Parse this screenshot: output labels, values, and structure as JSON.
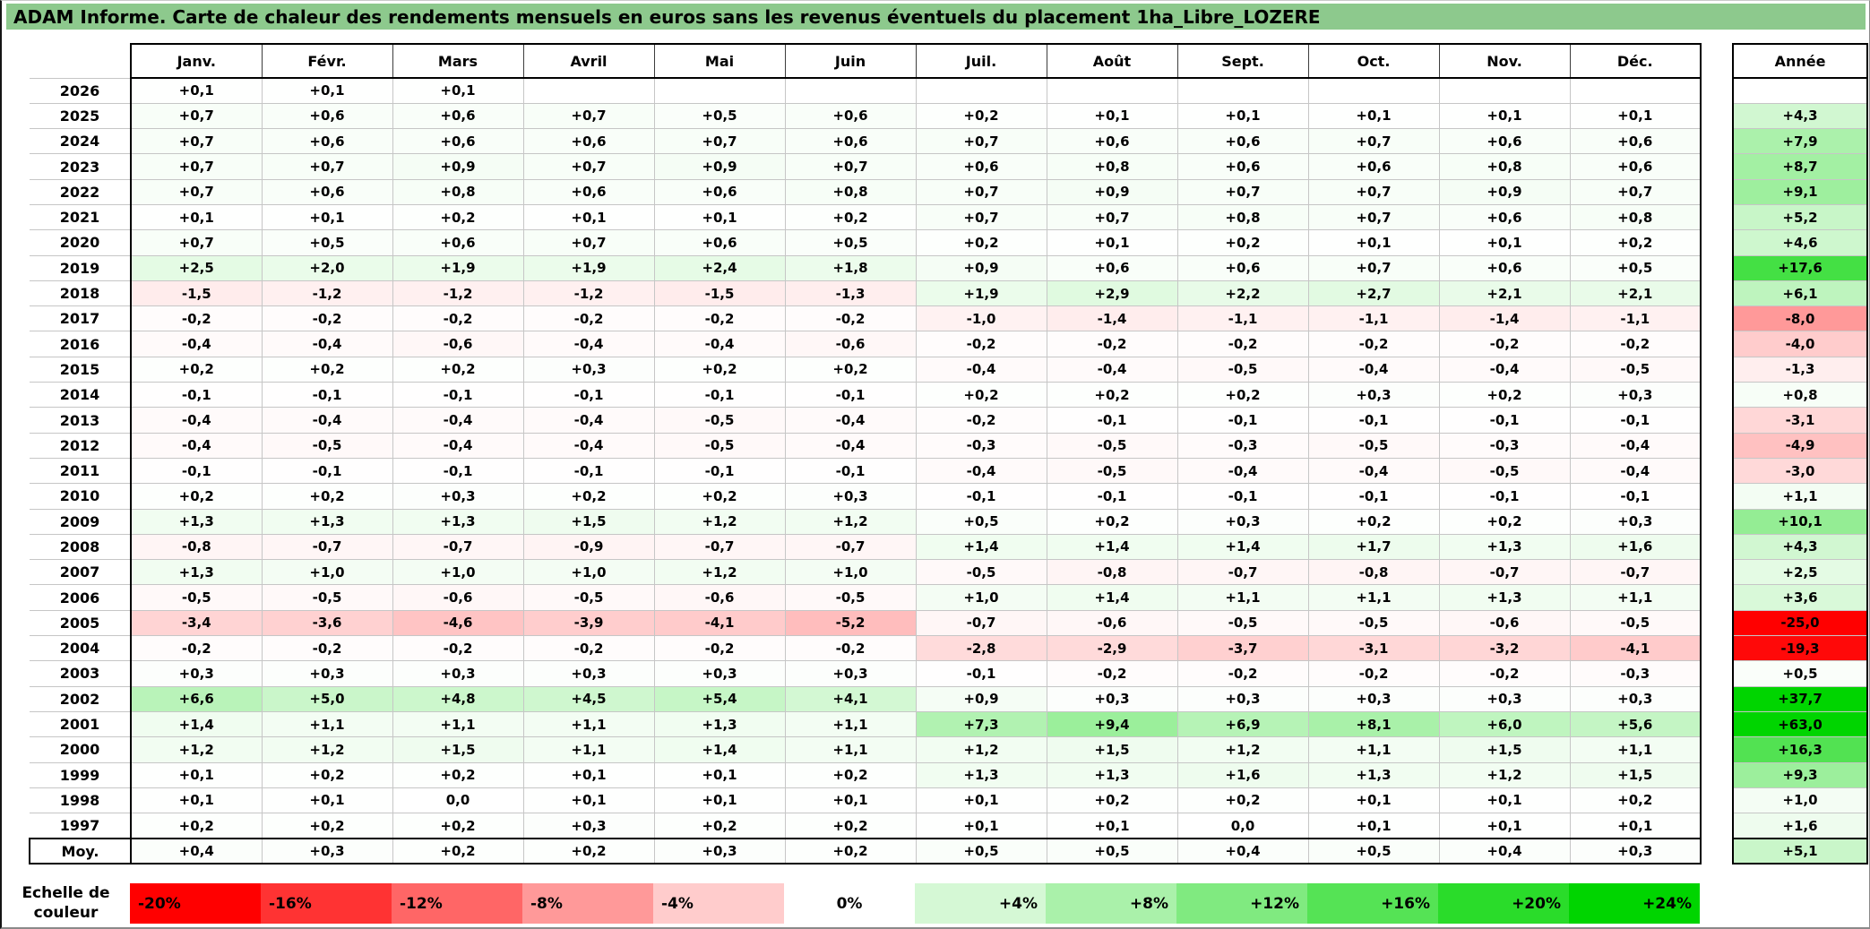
{
  "title": "ADAM Informe. Carte de chaleur des rendements mensuels en euros sans les revenus éventuels du placement 1ha_Libre_LOZERE",
  "colors": {
    "title_bar": "#8DC98D",
    "negative_max": "#FF0000",
    "zero": "#FFFFFF",
    "positive_max": "#00D500",
    "gridline": "#C6C6C6"
  },
  "table": {
    "annual_header": "Année",
    "average_label": "Moy."
  },
  "scale": {
    "label": "Echelle de couleur",
    "ticks": [
      -20,
      -16,
      -12,
      -8,
      -4,
      0,
      4,
      8,
      12,
      16,
      20,
      24
    ]
  },
  "chart_data": {
    "type": "heatmap",
    "title": "ADAM Informe. Carte de chaleur des rendements mensuels en euros sans les revenus éventuels du placement 1ha_Libre_LOZERE",
    "columns": [
      "Janv.",
      "Févr.",
      "Mars",
      "Avril",
      "Mai",
      "Juin",
      "Juil.",
      "Août",
      "Sept.",
      "Oct.",
      "Nov.",
      "Déc."
    ],
    "annual_column": "Année",
    "value_format": "signed, one decimal, comma as decimal separator, percent",
    "rows": [
      {
        "year": "2026",
        "monthly": [
          0.1,
          0.1,
          0.1,
          null,
          null,
          null,
          null,
          null,
          null,
          null,
          null,
          null
        ],
        "annual": null
      },
      {
        "year": "2025",
        "monthly": [
          0.7,
          0.6,
          0.6,
          0.7,
          0.5,
          0.6,
          0.2,
          0.1,
          0.1,
          0.1,
          0.1,
          0.1
        ],
        "annual": 4.3
      },
      {
        "year": "2024",
        "monthly": [
          0.7,
          0.6,
          0.6,
          0.6,
          0.7,
          0.6,
          0.7,
          0.6,
          0.6,
          0.7,
          0.6,
          0.6
        ],
        "annual": 7.9
      },
      {
        "year": "2023",
        "monthly": [
          0.7,
          0.7,
          0.9,
          0.7,
          0.9,
          0.7,
          0.6,
          0.8,
          0.6,
          0.6,
          0.8,
          0.6
        ],
        "annual": 8.7
      },
      {
        "year": "2022",
        "monthly": [
          0.7,
          0.6,
          0.8,
          0.6,
          0.6,
          0.8,
          0.7,
          0.9,
          0.7,
          0.7,
          0.9,
          0.7
        ],
        "annual": 9.1
      },
      {
        "year": "2021",
        "monthly": [
          0.1,
          0.1,
          0.2,
          0.1,
          0.1,
          0.2,
          0.7,
          0.7,
          0.8,
          0.7,
          0.6,
          0.8
        ],
        "annual": 5.2
      },
      {
        "year": "2020",
        "monthly": [
          0.7,
          0.5,
          0.6,
          0.7,
          0.6,
          0.5,
          0.2,
          0.1,
          0.2,
          0.1,
          0.1,
          0.2
        ],
        "annual": 4.6
      },
      {
        "year": "2019",
        "monthly": [
          2.5,
          2.0,
          1.9,
          1.9,
          2.4,
          1.8,
          0.9,
          0.6,
          0.6,
          0.7,
          0.6,
          0.5
        ],
        "annual": 17.6
      },
      {
        "year": "2018",
        "monthly": [
          -1.5,
          -1.2,
          -1.2,
          -1.2,
          -1.5,
          -1.3,
          1.9,
          2.9,
          2.2,
          2.7,
          2.1,
          2.1
        ],
        "annual": 6.1
      },
      {
        "year": "2017",
        "monthly": [
          -0.2,
          -0.2,
          -0.2,
          -0.2,
          -0.2,
          -0.2,
          -1.0,
          -1.4,
          -1.1,
          -1.1,
          -1.4,
          -1.1
        ],
        "annual": -8.0
      },
      {
        "year": "2016",
        "monthly": [
          -0.4,
          -0.4,
          -0.6,
          -0.4,
          -0.4,
          -0.6,
          -0.2,
          -0.2,
          -0.2,
          -0.2,
          -0.2,
          -0.2
        ],
        "annual": -4.0
      },
      {
        "year": "2015",
        "monthly": [
          0.2,
          0.2,
          0.2,
          0.3,
          0.2,
          0.2,
          -0.4,
          -0.4,
          -0.5,
          -0.4,
          -0.4,
          -0.5
        ],
        "annual": -1.3
      },
      {
        "year": "2014",
        "monthly": [
          -0.1,
          -0.1,
          -0.1,
          -0.1,
          -0.1,
          -0.1,
          0.2,
          0.2,
          0.2,
          0.3,
          0.2,
          0.3
        ],
        "annual": 0.8
      },
      {
        "year": "2013",
        "monthly": [
          -0.4,
          -0.4,
          -0.4,
          -0.4,
          -0.5,
          -0.4,
          -0.2,
          -0.1,
          -0.1,
          -0.1,
          -0.1,
          -0.1
        ],
        "annual": -3.1
      },
      {
        "year": "2012",
        "monthly": [
          -0.4,
          -0.5,
          -0.4,
          -0.4,
          -0.5,
          -0.4,
          -0.3,
          -0.5,
          -0.3,
          -0.5,
          -0.3,
          -0.4
        ],
        "annual": -4.9
      },
      {
        "year": "2011",
        "monthly": [
          -0.1,
          -0.1,
          -0.1,
          -0.1,
          -0.1,
          -0.1,
          -0.4,
          -0.5,
          -0.4,
          -0.4,
          -0.5,
          -0.4
        ],
        "annual": -3.0
      },
      {
        "year": "2010",
        "monthly": [
          0.2,
          0.2,
          0.3,
          0.2,
          0.2,
          0.3,
          -0.1,
          -0.1,
          -0.1,
          -0.1,
          -0.1,
          -0.1
        ],
        "annual": 1.1
      },
      {
        "year": "2009",
        "monthly": [
          1.3,
          1.3,
          1.3,
          1.5,
          1.2,
          1.2,
          0.5,
          0.2,
          0.3,
          0.2,
          0.2,
          0.3
        ],
        "annual": 10.1
      },
      {
        "year": "2008",
        "monthly": [
          -0.8,
          -0.7,
          -0.7,
          -0.9,
          -0.7,
          -0.7,
          1.4,
          1.4,
          1.4,
          1.7,
          1.3,
          1.6
        ],
        "annual": 4.3
      },
      {
        "year": "2007",
        "monthly": [
          1.3,
          1.0,
          1.0,
          1.0,
          1.2,
          1.0,
          -0.5,
          -0.8,
          -0.7,
          -0.8,
          -0.7,
          -0.7
        ],
        "annual": 2.5
      },
      {
        "year": "2006",
        "monthly": [
          -0.5,
          -0.5,
          -0.6,
          -0.5,
          -0.6,
          -0.5,
          1.0,
          1.4,
          1.1,
          1.1,
          1.3,
          1.1
        ],
        "annual": 3.6
      },
      {
        "year": "2005",
        "monthly": [
          -3.4,
          -3.6,
          -4.6,
          -3.9,
          -4.1,
          -5.2,
          -0.7,
          -0.6,
          -0.5,
          -0.5,
          -0.6,
          -0.5
        ],
        "annual": -25.0
      },
      {
        "year": "2004",
        "monthly": [
          -0.2,
          -0.2,
          -0.2,
          -0.2,
          -0.2,
          -0.2,
          -2.8,
          -2.9,
          -3.7,
          -3.1,
          -3.2,
          -4.1
        ],
        "annual": -19.3
      },
      {
        "year": "2003",
        "monthly": [
          0.3,
          0.3,
          0.3,
          0.3,
          0.3,
          0.3,
          -0.1,
          -0.2,
          -0.2,
          -0.2,
          -0.2,
          -0.3
        ],
        "annual": 0.5
      },
      {
        "year": "2002",
        "monthly": [
          6.6,
          5.0,
          4.8,
          4.5,
          5.4,
          4.1,
          0.9,
          0.3,
          0.3,
          0.3,
          0.3,
          0.3
        ],
        "annual": 37.7
      },
      {
        "year": "2001",
        "monthly": [
          1.4,
          1.1,
          1.1,
          1.1,
          1.3,
          1.1,
          7.3,
          9.4,
          6.9,
          8.1,
          6.0,
          5.6
        ],
        "annual": 63.0
      },
      {
        "year": "2000",
        "monthly": [
          1.2,
          1.2,
          1.5,
          1.1,
          1.4,
          1.1,
          1.2,
          1.5,
          1.2,
          1.1,
          1.5,
          1.1
        ],
        "annual": 16.3
      },
      {
        "year": "1999",
        "monthly": [
          0.1,
          0.2,
          0.2,
          0.1,
          0.1,
          0.2,
          1.3,
          1.3,
          1.6,
          1.3,
          1.2,
          1.5
        ],
        "annual": 9.3
      },
      {
        "year": "1998",
        "monthly": [
          0.1,
          0.1,
          0.0,
          0.1,
          0.1,
          0.1,
          0.1,
          0.2,
          0.2,
          0.1,
          0.1,
          0.2
        ],
        "annual": 1.0
      },
      {
        "year": "1997",
        "monthly": [
          0.2,
          0.2,
          0.2,
          0.3,
          0.2,
          0.2,
          0.1,
          0.1,
          0.0,
          0.1,
          0.1,
          0.1
        ],
        "annual": 1.6
      }
    ],
    "moyenne": {
      "label": "Moy.",
      "monthly": [
        0.4,
        0.3,
        0.2,
        0.2,
        0.3,
        0.2,
        0.5,
        0.5,
        0.4,
        0.5,
        0.4,
        0.3
      ],
      "annual": 5.1
    },
    "color_scale": {
      "label": "Echelle de couleur",
      "ticks": [
        -20,
        -16,
        -12,
        -8,
        -4,
        0,
        4,
        8,
        12,
        16,
        20,
        24
      ],
      "domain": [
        -20,
        24
      ],
      "negative_color": "#FF0000",
      "zero_color": "#FFFFFF",
      "positive_color": "#00D500"
    }
  }
}
